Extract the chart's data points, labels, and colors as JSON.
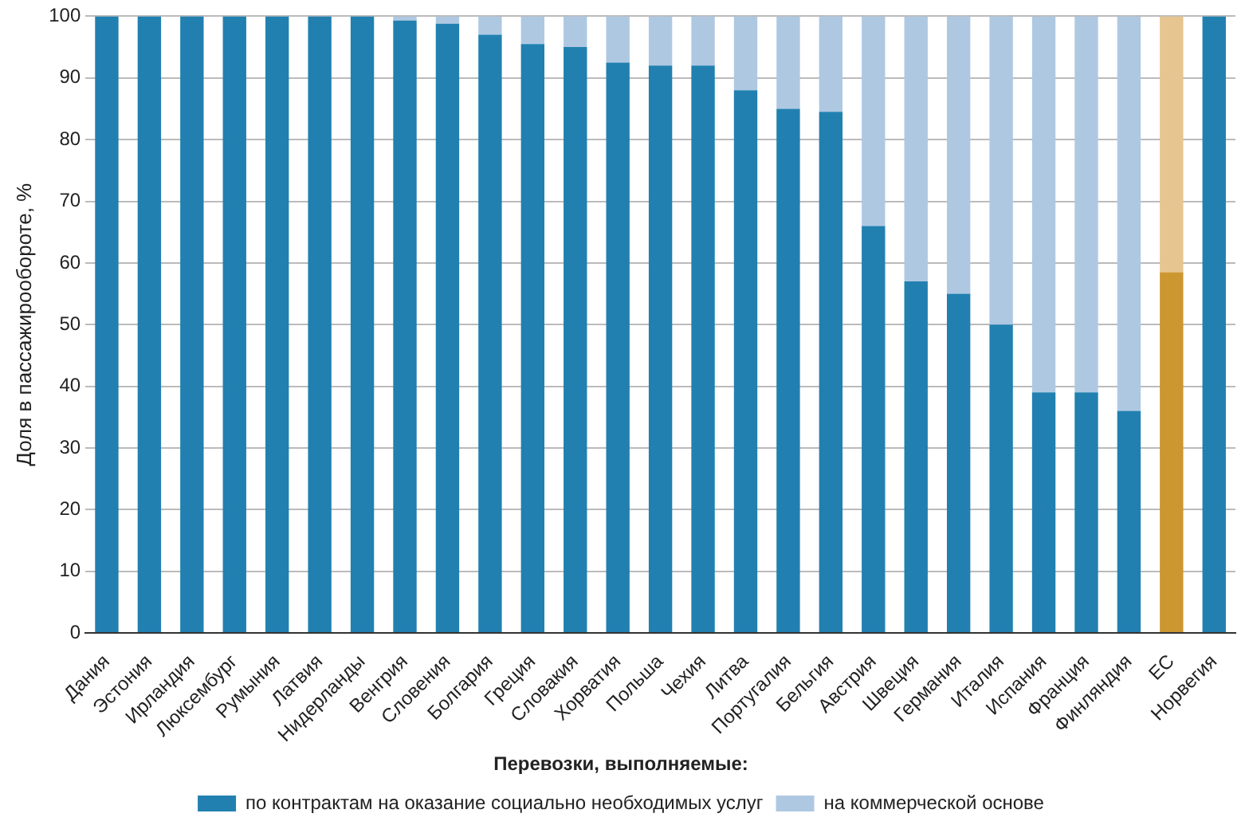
{
  "chart_data": {
    "type": "bar",
    "stacked": true,
    "ylabel": "Доля в пассажирообороте, %",
    "legend_title": "Перевозки, выполняемые:",
    "legend": "bottom",
    "grid": "y",
    "categories": [
      "Дания",
      "Эстония",
      "Ирландия",
      "Люксембург",
      "Румыния",
      "Латвия",
      "Нидерланды",
      "Венгрия",
      "Словения",
      "Болгария",
      "Греция",
      "Словакия",
      "Хорватия",
      "Польша",
      "Чехия",
      "Литва",
      "Португалия",
      "Бельгия",
      "Австрия",
      "Швеция",
      "Германия",
      "Италия",
      "Испания",
      "Франция",
      "Финляндия",
      "ЕС",
      "Норвегия"
    ],
    "ylim": [
      0,
      100
    ],
    "yticks": [
      0,
      10,
      20,
      30,
      40,
      50,
      60,
      70,
      80,
      90,
      100
    ],
    "series": [
      {
        "name": "по контрактам на оказание социально необходимых услуг",
        "color": "#2180b0",
        "colors": [
          "#2180b0",
          "#2180b0",
          "#2180b0",
          "#2180b0",
          "#2180b0",
          "#2180b0",
          "#2180b0",
          "#2180b0",
          "#2180b0",
          "#2180b0",
          "#2180b0",
          "#2180b0",
          "#2180b0",
          "#2180b0",
          "#2180b0",
          "#2180b0",
          "#2180b0",
          "#2180b0",
          "#2180b0",
          "#2180b0",
          "#2180b0",
          "#2180b0",
          "#2180b0",
          "#2180b0",
          "#2180b0",
          "#cc9630",
          "#2180b0"
        ],
        "values": [
          100,
          100,
          100,
          100,
          100,
          100,
          100,
          99.3,
          98.8,
          97,
          95.5,
          95,
          92.5,
          92,
          92,
          88,
          85,
          84.5,
          66,
          57,
          55,
          50,
          39,
          39,
          36,
          58.5,
          100
        ]
      },
      {
        "name": "на коммерческой основе",
        "color": "#afc8e2",
        "colors": [
          "#afc8e2",
          "#afc8e2",
          "#afc8e2",
          "#afc8e2",
          "#afc8e2",
          "#afc8e2",
          "#afc8e2",
          "#afc8e2",
          "#afc8e2",
          "#afc8e2",
          "#afc8e2",
          "#afc8e2",
          "#afc8e2",
          "#afc8e2",
          "#afc8e2",
          "#afc8e2",
          "#afc8e2",
          "#afc8e2",
          "#afc8e2",
          "#afc8e2",
          "#afc8e2",
          "#afc8e2",
          "#afc8e2",
          "#afc8e2",
          "#afc8e2",
          "#e6c590",
          "#afc8e2"
        ],
        "values": [
          0,
          0,
          0,
          0,
          0,
          0,
          0,
          0.7,
          1.2,
          3,
          4.5,
          5,
          7.5,
          8,
          8,
          12,
          15,
          15.5,
          34,
          43,
          45,
          50,
          61,
          61,
          64,
          41.5,
          0
        ]
      }
    ]
  }
}
